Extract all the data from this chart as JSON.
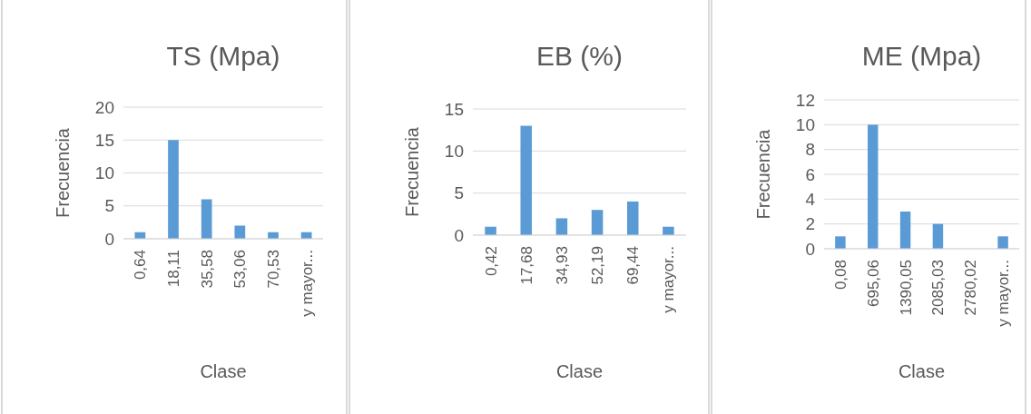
{
  "chart_data": [
    {
      "type": "bar",
      "title": "TS (Mpa)",
      "xlabel": "Clase",
      "ylabel": "Frecuencia",
      "categories": [
        "0,64",
        "18,11",
        "35,58",
        "53,06",
        "70,53",
        "y mayor..."
      ],
      "values": [
        1,
        15,
        6,
        2,
        1,
        1
      ],
      "color": "#5b9bd5",
      "ylim": [
        0,
        20
      ],
      "yticks": [
        0,
        5,
        10,
        15,
        20
      ],
      "grid": "y"
    },
    {
      "type": "bar",
      "title": "EB (%)",
      "xlabel": "Clase",
      "ylabel": "Frecuencia",
      "categories": [
        "0,42",
        "17,68",
        "34,93",
        "52,19",
        "69,44",
        "y mayor..."
      ],
      "values": [
        1,
        13,
        2,
        3,
        4,
        1
      ],
      "color": "#5b9bd5",
      "ylim": [
        0,
        15
      ],
      "yticks": [
        0,
        5,
        10,
        15
      ],
      "grid": "y"
    },
    {
      "type": "bar",
      "title": "ME (Mpa)",
      "xlabel": "Clase",
      "ylabel": "Frecuencia",
      "categories": [
        "0,08",
        "695,06",
        "1390,05",
        "2085,03",
        "2780,02",
        "y mayor..."
      ],
      "values": [
        1,
        10,
        3,
        2,
        0,
        1
      ],
      "color": "#5b9bd5",
      "ylim": [
        0,
        12
      ],
      "yticks": [
        0,
        2,
        4,
        6,
        8,
        10,
        12
      ],
      "grid": "y"
    }
  ]
}
